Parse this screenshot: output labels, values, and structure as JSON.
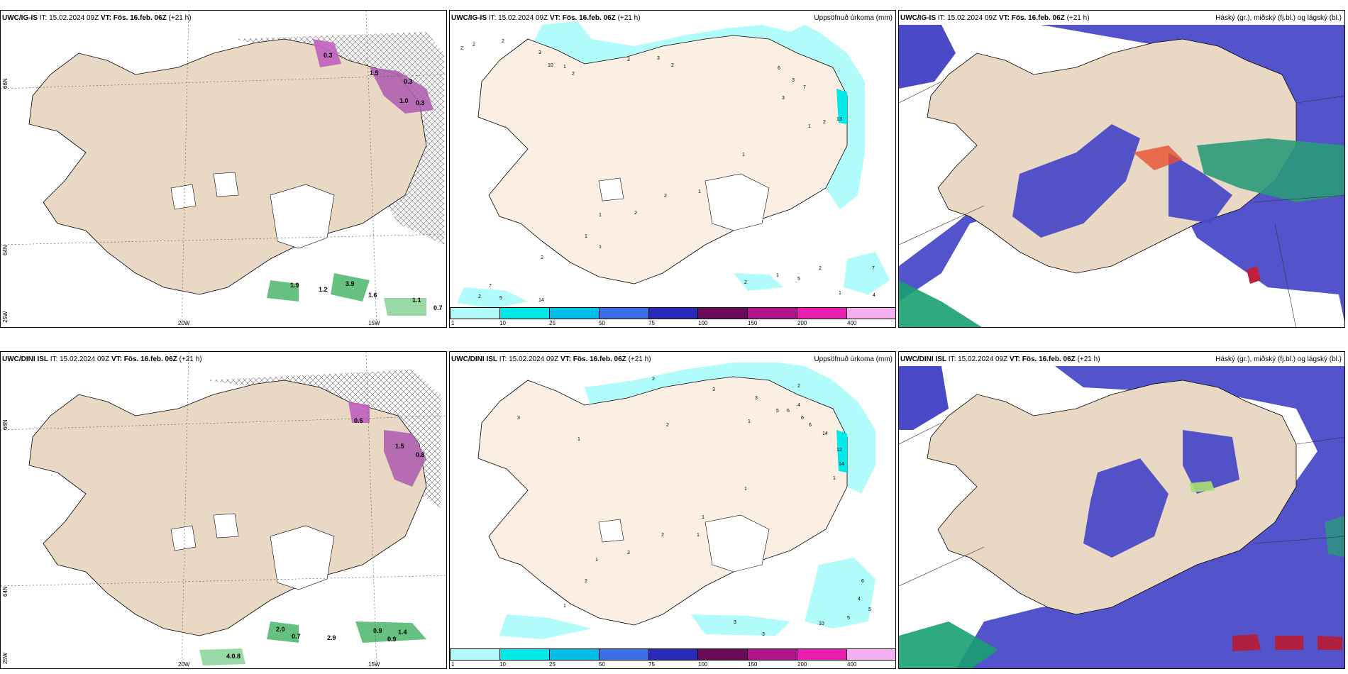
{
  "panels": [
    {
      "id": "r1c1",
      "model": "UWC/IG-IS",
      "it_label": "IT:",
      "it_value": "15.02.2024 09Z",
      "vt_label": "VT:",
      "vt_value": "Fös. 16.feb. 06Z",
      "lead": "(+21 h)",
      "right_title": "",
      "lat_labels": [
        "66N",
        "64N",
        "25W"
      ],
      "lon_labels": [
        "20W",
        "15W"
      ],
      "values": [
        "0.3",
        "1.5",
        "0.3",
        "1.0",
        "0.3",
        "1.9",
        "1.2",
        "3.9",
        "1.6",
        "1.1",
        "0.7"
      ]
    },
    {
      "id": "r1c2",
      "model": "UWC/IG-IS",
      "it_label": "IT:",
      "it_value": "15.02.2024 09Z",
      "vt_label": "VT:",
      "vt_value": "Fös. 16.feb. 06Z",
      "lead": "(+21 h)",
      "right_title": "Uppsöfnuð úrkoma (mm)",
      "lat_labels": [
        "66N",
        "64N"
      ],
      "values": [
        "2",
        "2",
        "2",
        "3",
        "10",
        "1",
        "2",
        "2",
        "3",
        "2",
        "6",
        "3",
        "7",
        "3",
        "1",
        "2",
        "13",
        "1",
        "1",
        "2",
        "2",
        "1",
        "1",
        "1",
        "2",
        "7",
        "2",
        "5",
        "14",
        "2",
        "1",
        "5",
        "2",
        "7",
        "1",
        "4"
      ]
    },
    {
      "id": "r1c3",
      "model": "UWC/IG-IS",
      "it_label": "IT:",
      "it_value": "15.02.2024 09Z",
      "vt_label": "VT:",
      "vt_value": "Fös. 16.feb. 06Z",
      "lead": "(+21 h)",
      "right_title": "Háský (gr.), miðský (fj.bl.) og lágský (bl.)"
    },
    {
      "id": "r2c1",
      "model": "UWC/DINI ISL",
      "it_label": "IT:",
      "it_value": "15.02.2024 09Z",
      "vt_label": "VT:",
      "vt_value": "Fös. 16.feb. 06Z",
      "lead": "(+21 h)",
      "right_title": "",
      "lat_labels": [
        "66N",
        "64N",
        "25W"
      ],
      "lon_labels": [
        "20W",
        "15W"
      ],
      "values": [
        "0.6",
        "1.5",
        "0.8",
        "2.0",
        "0.7",
        "0.9",
        "2.9",
        "1.4",
        "0.9",
        "4.0.8"
      ]
    },
    {
      "id": "r2c2",
      "model": "UWC/DINI ISL",
      "it_label": "IT:",
      "it_value": "15.02.2024 09Z",
      "vt_label": "VT:",
      "vt_value": "Fös. 16.feb. 06Z",
      "lead": "(+21 h)",
      "right_title": "Uppsöfnuð úrkoma (mm)",
      "lat_labels": [
        "66N",
        "64N"
      ],
      "values": [
        "2",
        "3",
        "3",
        "2",
        "3",
        "5",
        "5",
        "4",
        "6",
        "6",
        "14",
        "12",
        "14",
        "1",
        "1",
        "2",
        "1",
        "1",
        "1",
        "1",
        "2",
        "2",
        "1",
        "2",
        "1",
        "3",
        "6",
        "4",
        "5",
        "10",
        "5",
        "3"
      ]
    },
    {
      "id": "r2c3",
      "model": "UWC/DINI ISL",
      "it_label": "IT:",
      "it_value": "15.02.2024 09Z",
      "vt_label": "VT:",
      "vt_value": "Fös. 16.feb. 06Z",
      "lead": "(+21 h)",
      "right_title": "Háský (gr.), miðský (fj.bl.) og lágský (bl.)"
    }
  ],
  "colorbar": {
    "labels": [
      "1",
      "10",
      "25",
      "50",
      "75",
      "100",
      "150",
      "200",
      "400"
    ],
    "colors": [
      "#b2fbfb",
      "#00e8e8",
      "#00bde8",
      "#3a6fe8",
      "#2a2ab8",
      "#6a0a5a",
      "#b0148a",
      "#e81eb0",
      "#f4b0f0"
    ]
  },
  "colors": {
    "land": "#e8d8c4",
    "land_precip": "#fbefe3",
    "precip_light": "#b2fbfb",
    "cloud_low": "#4a4ac8",
    "cloud_mid": "#2a9a7a",
    "cloud_high": "#18a070"
  }
}
